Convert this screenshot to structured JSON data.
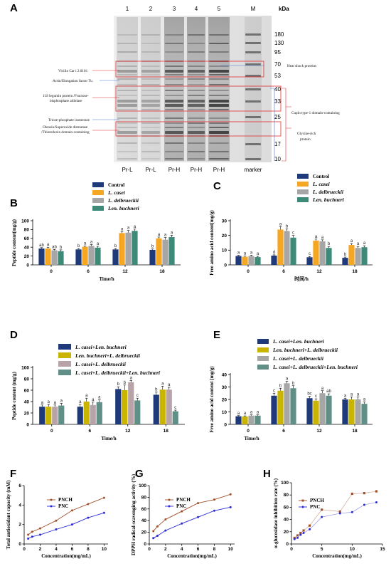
{
  "panels": {
    "A": {
      "letter": "A",
      "lane_numbers": [
        "1",
        "2",
        "3",
        "4",
        "5",
        "M"
      ],
      "lane_labels": [
        "Pr-L",
        "Pr-L",
        "Pr-H",
        "Pr-H",
        "Pr-H",
        "marker"
      ],
      "kda_label": "kDa",
      "markers": [
        "180",
        "130",
        "95",
        "70",
        "53",
        "40",
        "33",
        "25",
        "17",
        "10"
      ],
      "left_annotations": [
        "Vicilin Car i 2.0101",
        "Actin/Elongation factor Tu",
        "11S legumin protein /Fructose-",
        "bisphosphate aldolase",
        "Triose-phosphate isomerase",
        "Oleosin/Superoxide dismutase",
        "/Thioredoxin domain-containing"
      ],
      "right_annotations": [
        "Heat shock proteins",
        "Cupin type-1 domain-containing",
        "Glycine-rich",
        "protein"
      ]
    },
    "B": {
      "letter": "B",
      "legend": [
        {
          "text": "Control",
          "italic": false,
          "color": "#1f3a7a"
        },
        {
          "text": "L. casei",
          "italic": true,
          "color": "#f5a623"
        },
        {
          "text": "L. delbrueckii",
          "italic": true,
          "color": "#a6a6a6"
        },
        {
          "text": "Len. buchneri",
          "italic": true,
          "color": "#3d8a78"
        }
      ],
      "chart_data": {
        "type": "bar",
        "categories": [
          "0",
          "6",
          "12",
          "18"
        ],
        "series": [
          {
            "name": "Control",
            "values": [
              37,
              35,
              35,
              34
            ],
            "errors": [
              2,
              2,
              2,
              2
            ],
            "letters": [
              "ab",
              "b",
              "b",
              "b"
            ]
          },
          {
            "name": "L. casei",
            "values": [
              37,
              41,
              72,
              60
            ],
            "errors": [
              3,
              2,
              3,
              3
            ],
            "letters": [
              "a",
              "a",
              "a",
              "a"
            ]
          },
          {
            "name": "L. delbrueckii",
            "values": [
              33,
              43,
              73,
              57
            ],
            "errors": [
              2,
              3,
              5,
              5
            ],
            "letters": [
              "ab",
              "a",
              "a",
              "a"
            ]
          },
          {
            "name": "Len. buchneri",
            "values": [
              31,
              39,
              77,
              63
            ],
            "errors": [
              3,
              3,
              4,
              4
            ],
            "letters": [
              "b",
              "a",
              "a",
              "a"
            ]
          }
        ],
        "xlabel": "Time/h",
        "ylabel": "Peptide content(mg/g)",
        "ylim": [
          0,
          100
        ],
        "yticks": [
          "0",
          "20",
          "40",
          "60",
          "80",
          "100"
        ]
      }
    },
    "C": {
      "letter": "C",
      "legend": [
        {
          "text": "Control",
          "italic": false,
          "color": "#1f3a7a"
        },
        {
          "text": "L. casei",
          "italic": true,
          "color": "#f5a623"
        },
        {
          "text": "L. delbrueckii",
          "italic": true,
          "color": "#a6a6a6"
        },
        {
          "text": "Len. buchneri",
          "italic": true,
          "color": "#3d8a78"
        }
      ],
      "chart_data": {
        "type": "bar",
        "categories": [
          "0",
          "6",
          "12",
          "18"
        ],
        "series": [
          {
            "name": "Control",
            "values": [
              6,
              6.3,
              5.2,
              4.8
            ],
            "errors": [
              0.5,
              0.5,
              0.5,
              0.5
            ],
            "letters": [
              "a",
              "d",
              "c",
              "b"
            ]
          },
          {
            "name": "L. casei",
            "values": [
              5.5,
              24,
              16.5,
              13.5
            ],
            "errors": [
              0.5,
              2,
              1,
              1
            ],
            "letters": [
              "a",
              "a",
              "a",
              "a"
            ]
          },
          {
            "name": "L. delbrueckii",
            "values": [
              6,
              23,
              16,
              11.5
            ],
            "errors": [
              0.6,
              1.5,
              1,
              1
            ],
            "letters": [
              "a",
              "b",
              "a",
              "a"
            ]
          },
          {
            "name": "Len. buchneri",
            "values": [
              5.3,
              18.5,
              11.5,
              12
            ],
            "errors": [
              0.5,
              1.5,
              1,
              1
            ],
            "letters": [
              "a",
              "c",
              "b",
              "a"
            ]
          }
        ],
        "xlabel": "时间/h",
        "ylabel": "Free amino acid content(mg/g)",
        "ylim": [
          0,
          30
        ],
        "yticks": [
          "0",
          "10",
          "20",
          "30"
        ]
      }
    },
    "D": {
      "letter": "D",
      "legend": [
        {
          "text": "L. casei+Len. buchneri",
          "color": "#1f3a7a"
        },
        {
          "text": "Len. buchneri+L. delbrueckii",
          "color": "#c9b400"
        },
        {
          "text": "L. casei+L. delbrueckii",
          "color": "#b8a4a8"
        },
        {
          "text": "L. casei+L. delbrueckii+Len. buchneri",
          "color": "#5f8f86"
        }
      ],
      "chart_data": {
        "type": "bar",
        "categories": [
          "0",
          "6",
          "12",
          "18"
        ],
        "series": [
          {
            "name": "L. casei+Len. buchneri",
            "values": [
              31,
              31,
              62,
              52
            ],
            "errors": [
              3,
              4,
              4,
              5
            ],
            "letters": [
              "a",
              "a",
              "b",
              "b"
            ]
          },
          {
            "name": "Len. buchneri+L. delbrueckii",
            "values": [
              31,
              40,
              60,
              61
            ],
            "errors": [
              4,
              6,
              9,
              6
            ],
            "letters": [
              "a",
              "a",
              "b",
              "a"
            ]
          },
          {
            "name": "L. casei+L. delbrueckii",
            "values": [
              31,
              34,
              74,
              61
            ],
            "errors": [
              3,
              5,
              3,
              4
            ],
            "letters": [
              "a",
              "a",
              "a",
              "a"
            ]
          },
          {
            "name": "L. casei+L. delbrueckii+Len. buchneri",
            "values": [
              33,
              39,
              42,
              23
            ],
            "errors": [
              4,
              4,
              4,
              2
            ],
            "letters": [
              "a",
              "a",
              "c",
              "c"
            ]
          }
        ],
        "xlabel": "Time/h",
        "ylabel": "Peptide content (mg/g)",
        "ylim": [
          0,
          100
        ],
        "yticks": [
          "0",
          "20",
          "40",
          "60",
          "80",
          "100"
        ]
      }
    },
    "E": {
      "letter": "E",
      "legend": [
        {
          "text": "L. casei+Len. buchneri",
          "color": "#1f3a7a"
        },
        {
          "text": "Len. buchneri+L. delbrueckii",
          "color": "#c9b400"
        },
        {
          "text": "L. casei+L. delbrueckii",
          "color": "#a6a6a6"
        },
        {
          "text": "L. casei+L. delbrueckii+Len. buchneri",
          "color": "#5f8f86"
        }
      ],
      "chart_data": {
        "type": "bar",
        "categories": [
          "0",
          "6",
          "12",
          "18"
        ],
        "series": [
          {
            "name": "L. casei+Len. buchneri",
            "values": [
              6.5,
              23,
              21,
              20
            ],
            "errors": [
              0.5,
              2,
              1.5,
              1
            ],
            "letters": [
              "a",
              "c",
              "bc",
              "a"
            ]
          },
          {
            "name": "Len. buchneri+L. delbrueckii",
            "values": [
              6.3,
              27,
              19,
              20
            ],
            "errors": [
              0.5,
              2,
              1.5,
              2
            ],
            "letters": [
              "a",
              "b",
              "c",
              "a"
            ]
          },
          {
            "name": "L. casei+L. delbrueckii",
            "values": [
              7,
              33,
              25,
              20
            ],
            "errors": [
              0.6,
              1.5,
              2,
              2
            ],
            "letters": [
              "a",
              "a",
              "a",
              "a"
            ]
          },
          {
            "name": "L. casei+L. delbrueckii+Len. buchneri",
            "values": [
              7,
              29,
              23,
              16.5
            ],
            "errors": [
              0.6,
              2,
              1.5,
              1.5
            ],
            "letters": [
              "a",
              "b",
              "ab",
              "a"
            ]
          }
        ],
        "xlabel": "Time/h",
        "ylabel": "Free amino acid content (mg/g)",
        "ylim": [
          0,
          40
        ],
        "yticks": [
          "0",
          "10",
          "20",
          "30",
          "40"
        ]
      }
    },
    "F": {
      "letter": "F",
      "chart_data": {
        "type": "line",
        "series": [
          {
            "name": "PNCH",
            "color": "#a0522d",
            "x": [
              0.5,
              1,
              2,
              4,
              6,
              8,
              10
            ],
            "y": [
              0.95,
              1.25,
              1.6,
              2.4,
              3.45,
              4.1,
              4.75
            ]
          },
          {
            "name": "PNC",
            "color": "#2a2ad6",
            "x": [
              0.5,
              1,
              2,
              4,
              6,
              8,
              10
            ],
            "y": [
              0.55,
              0.75,
              0.95,
              1.5,
              2.0,
              2.7,
              3.2
            ]
          }
        ],
        "xlabel": "Concentration(mg/mL)",
        "ylabel": "Total antioxidant capacity (mM)",
        "xlim": [
          0,
          10.5
        ],
        "ylim": [
          0,
          6
        ],
        "xticks": [
          "0",
          "2",
          "4",
          "6",
          "8",
          "10"
        ],
        "yticks": [
          "0",
          "2",
          "4",
          "6"
        ]
      }
    },
    "G": {
      "letter": "G",
      "chart_data": {
        "type": "line",
        "series": [
          {
            "name": "PNCH",
            "color": "#a0522d",
            "x": [
              0.5,
              1,
              2,
              4,
              6,
              8,
              10
            ],
            "y": [
              22,
              30,
              42,
              56,
              70,
              76,
              85
            ]
          },
          {
            "name": "PNC",
            "color": "#2a2ad6",
            "x": [
              0.5,
              1,
              2,
              4,
              6,
              8,
              10
            ],
            "y": [
              10,
              14,
              23,
              35,
              46,
              57,
              63
            ]
          }
        ],
        "xlabel": "Concentration(mg/mL)",
        "ylabel": "DPPH radical-scavenging activity (%)",
        "xlim": [
          0,
          10.5
        ],
        "ylim": [
          0,
          100
        ],
        "xticks": [
          "0",
          "2",
          "4",
          "6",
          "8",
          "10"
        ],
        "yticks": [
          "0",
          "20",
          "40",
          "60",
          "80",
          "100"
        ]
      }
    },
    "H": {
      "letter": "H",
      "chart_data": {
        "type": "scatter",
        "series": [
          {
            "name": "PNCH",
            "color": "#a0522d",
            "marker": "square",
            "x": [
              0.5,
              1,
              1.5,
              2,
              3,
              5,
              8,
              10,
              12,
              14
            ],
            "y": [
              10,
              14,
              18,
              22,
              30,
              56,
              53,
              82,
              83,
              86
            ]
          },
          {
            "name": "PNC",
            "color": "#2a2ad6",
            "marker": "circle",
            "x": [
              0.5,
              1,
              1.5,
              2,
              3,
              5,
              8,
              10,
              12,
              14
            ],
            "y": [
              8,
              10,
              15,
              18,
              24,
              44,
              50,
              52,
              64,
              68
            ]
          }
        ],
        "xlabel": "Concentration(mg/mL)",
        "ylabel": "α-glucosidase inhibition rate (%)",
        "xlim": [
          0,
          15
        ],
        "ylim": [
          0,
          100
        ],
        "xticks": [
          "0",
          "5",
          "10",
          "15"
        ],
        "yticks": [
          "0",
          "20",
          "40",
          "60",
          "80",
          "100"
        ]
      }
    }
  }
}
